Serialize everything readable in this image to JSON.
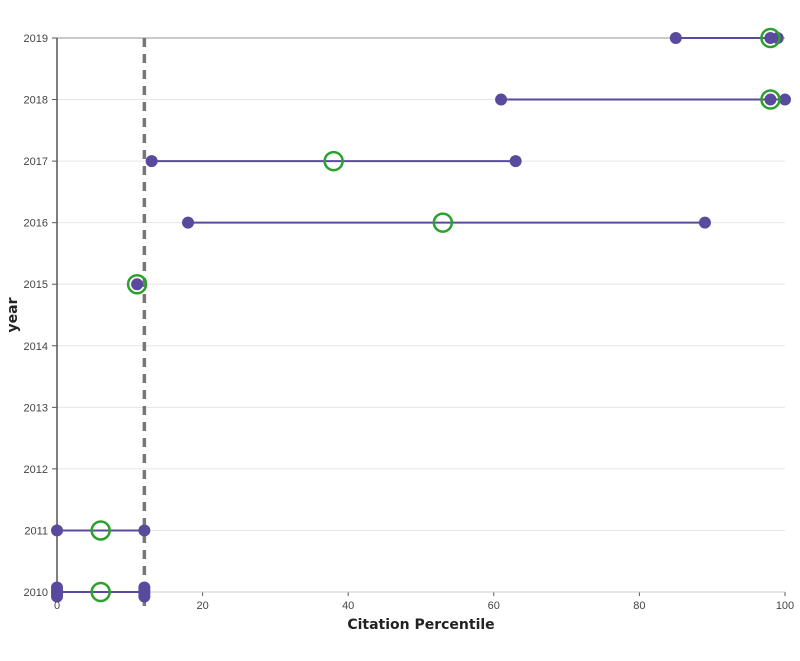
{
  "chart_data": {
    "type": "scatter",
    "title": "",
    "xlabel": "Citation Percentile",
    "ylabel": "year",
    "xlim": [
      0,
      100
    ],
    "x_ticks": [
      "0",
      "20",
      "40",
      "60",
      "80",
      "100"
    ],
    "y_categories": [
      "2010",
      "2011",
      "2012",
      "2013",
      "2014",
      "2015",
      "2016",
      "2017",
      "2018",
      "2019"
    ],
    "grid": "horizontal",
    "reference_line": {
      "x": 12,
      "style": "dashed"
    },
    "ranges": [
      {
        "year": "2019",
        "min": 85,
        "max": 99,
        "median": 98,
        "points": [
          85,
          98,
          99
        ]
      },
      {
        "year": "2018",
        "min": 61,
        "max": 100,
        "median": 98,
        "points": [
          61,
          98,
          100
        ]
      },
      {
        "year": "2017",
        "min": 13,
        "max": 63,
        "median": 38,
        "points": [
          13,
          63
        ]
      },
      {
        "year": "2016",
        "min": 18,
        "max": 89,
        "median": 53,
        "points": [
          18,
          89
        ]
      },
      {
        "year": "2015",
        "min": 11,
        "max": 11,
        "median": 11,
        "points": [
          11
        ]
      },
      {
        "year": "2011",
        "min": 0,
        "max": 12,
        "median": 6,
        "points": [
          0,
          12
        ]
      },
      {
        "year": "2010",
        "min": 0,
        "max": 12,
        "median": 6,
        "points": [
          0,
          0,
          0,
          0,
          12,
          12,
          12,
          12
        ]
      }
    ],
    "colors": {
      "point": "#5a4a9e",
      "range_line": "#5a4a9e",
      "median_ring": "#2ca02c",
      "reference_line": "#777777",
      "grid": "#e6e6e6",
      "axis": "#555555"
    }
  }
}
